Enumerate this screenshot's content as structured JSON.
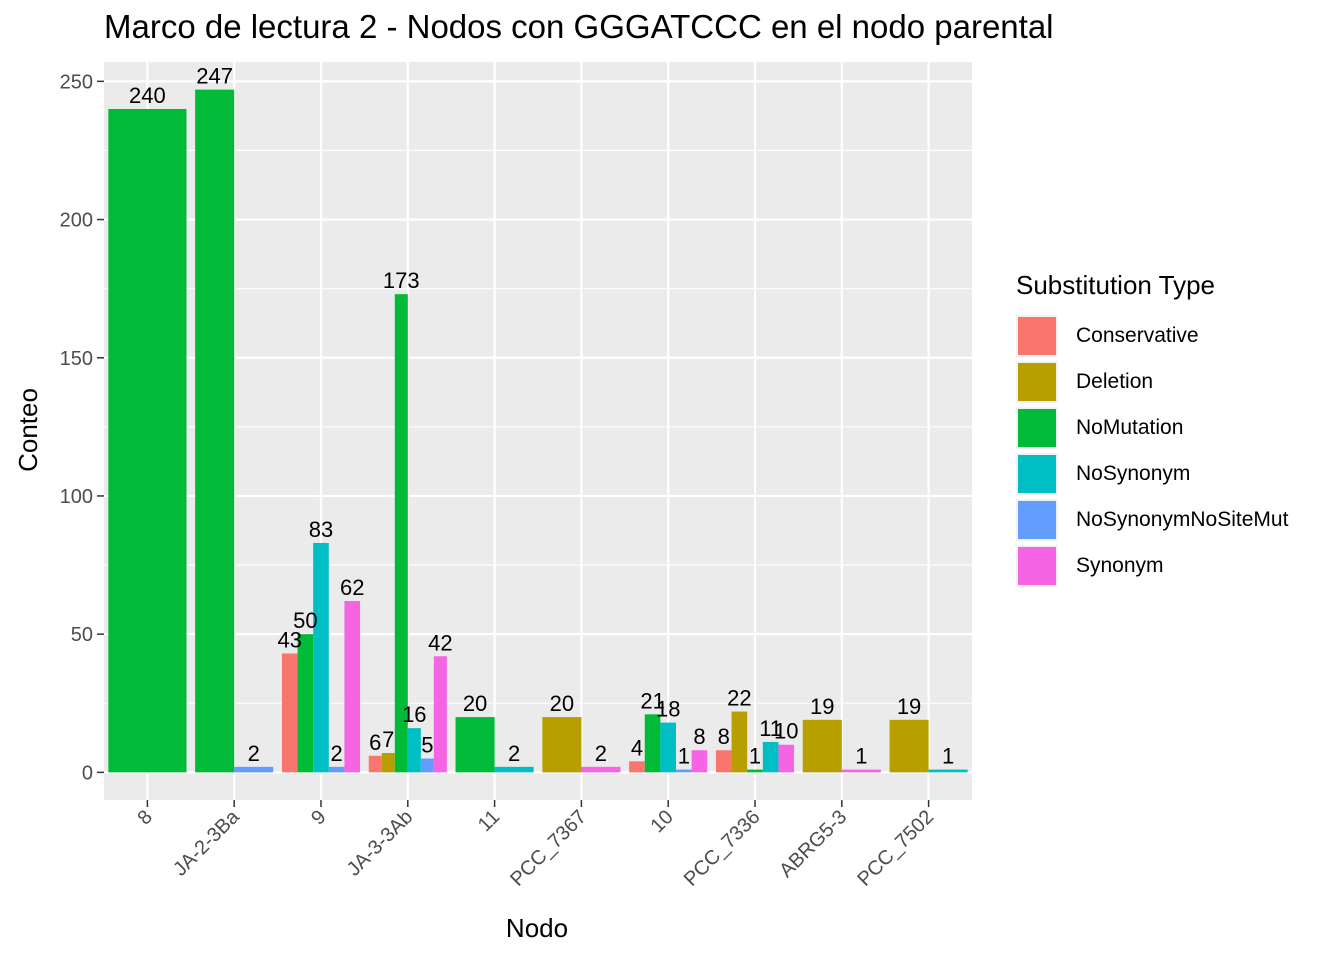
{
  "chart_data": {
    "type": "bar",
    "title": "Marco de lectura 2 - Nodos con GGGATCCC en el nodo parental",
    "xlabel": "Nodo",
    "ylabel": "Conteo",
    "ylim": [
      -10,
      257
    ],
    "yticks": [
      0,
      50,
      100,
      150,
      200,
      250
    ],
    "grid": true,
    "legend_position": "right",
    "legend_title": "Substitution Type",
    "categories": [
      "8",
      "JA-2-3Ba",
      "9",
      "JA-3-3Ab",
      "11",
      "PCC_7367",
      "10",
      "PCC_7336",
      "ABRG5-3",
      "PCC_7502"
    ],
    "series": [
      {
        "name": "Conservative",
        "color": "#F8766D",
        "values": [
          null,
          null,
          43,
          6,
          null,
          null,
          4,
          8,
          null,
          null
        ]
      },
      {
        "name": "Deletion",
        "color": "#B79F00",
        "values": [
          null,
          null,
          null,
          7,
          null,
          20,
          null,
          22,
          19,
          19
        ]
      },
      {
        "name": "NoMutation",
        "color": "#00BA38",
        "values": [
          240,
          247,
          50,
          173,
          20,
          null,
          21,
          1,
          null,
          null
        ]
      },
      {
        "name": "NoSynonym",
        "color": "#00BFC4",
        "values": [
          null,
          null,
          83,
          16,
          2,
          null,
          18,
          11,
          null,
          1
        ]
      },
      {
        "name": "NoSynonymNoSiteMut",
        "color": "#619CFF",
        "values": [
          null,
          2,
          2,
          5,
          null,
          null,
          1,
          null,
          null,
          null
        ]
      },
      {
        "name": "Synonym",
        "color": "#F564E3",
        "values": [
          null,
          null,
          62,
          42,
          null,
          2,
          8,
          10,
          1,
          null
        ]
      }
    ]
  }
}
